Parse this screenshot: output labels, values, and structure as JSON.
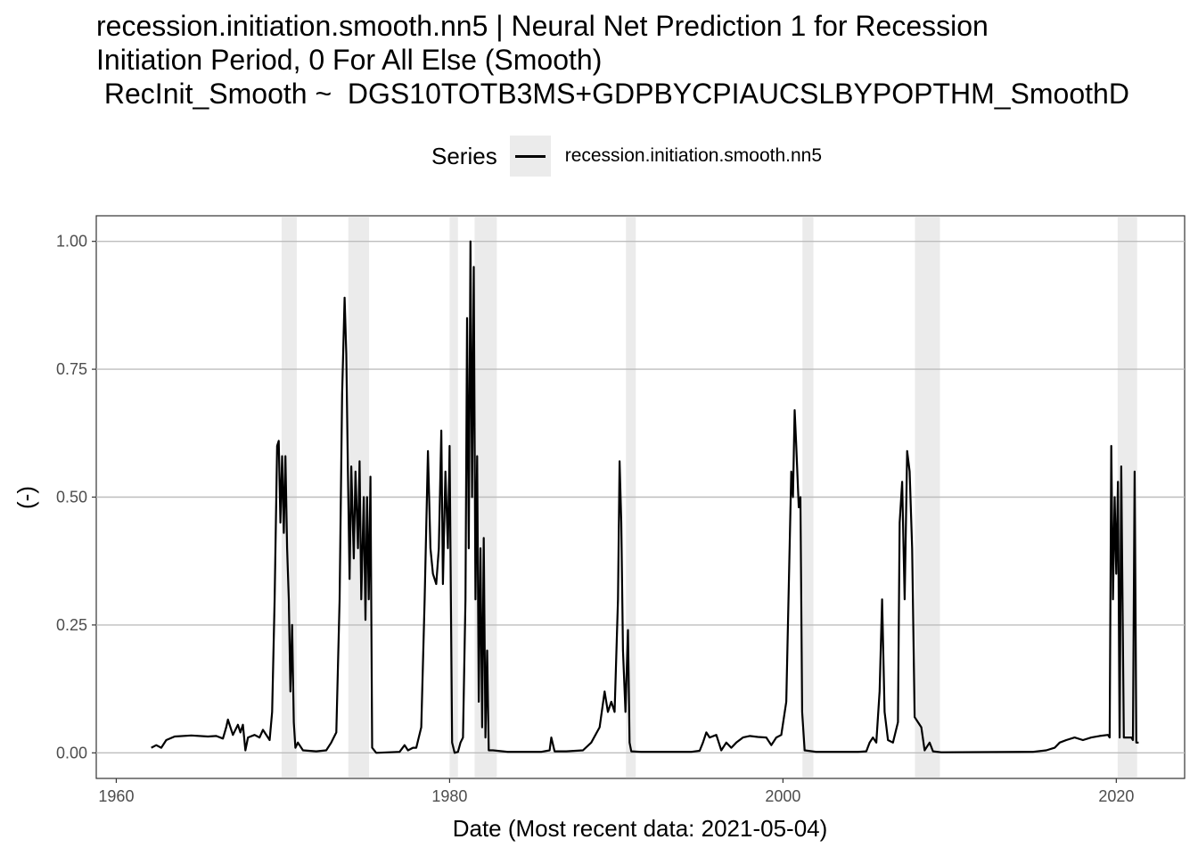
{
  "chart_data": {
    "type": "line",
    "title_lines": [
      "recession.initiation.smooth.nn5 | Neural Net Prediction 1 for Recession",
      "Initiation Period, 0 For All Else (Smooth)",
      " RecInit_Smooth ~  DGS10TOTB3MS+GDPBYCPIAUCSLBYPOPTHM_SmoothD"
    ],
    "legend": {
      "title": "Series",
      "position": "top",
      "entries": [
        "recession.initiation.smooth.nn5"
      ]
    },
    "xlabel": "Date (Most recent data: 2021-05-04)",
    "ylabel": "(-)",
    "xlim": [
      1958.8,
      1967.4
    ],
    "x_range": [
      1958.8,
      2024.1
    ],
    "ylim": [
      -0.05,
      1.05
    ],
    "grid": true,
    "x_ticks": [
      {
        "value": 1960,
        "label": "1960"
      },
      {
        "value": 1980,
        "label": "1980"
      },
      {
        "value": 2000,
        "label": "2000"
      },
      {
        "value": 2020,
        "label": "2020"
      }
    ],
    "y_ticks": [
      {
        "value": 0.0,
        "label": "0.00"
      },
      {
        "value": 0.25,
        "label": "0.25"
      },
      {
        "value": 0.5,
        "label": "0.50"
      },
      {
        "value": 0.75,
        "label": "0.75"
      },
      {
        "value": 1.0,
        "label": "1.00"
      }
    ],
    "recession_shading": [
      [
        1969.92,
        1970.83
      ],
      [
        1973.92,
        1975.17
      ],
      [
        1980.0,
        1980.5
      ],
      [
        1981.5,
        1982.83
      ],
      [
        1990.58,
        1991.17
      ],
      [
        2001.17,
        2001.83
      ],
      [
        2007.92,
        2009.42
      ],
      [
        2020.08,
        2021.25
      ]
    ],
    "series": [
      {
        "name": "recession.initiation.smooth.nn5",
        "color": "#000000",
        "points": [
          [
            1962.1,
            0.01
          ],
          [
            1962.4,
            0.015
          ],
          [
            1962.7,
            0.01
          ],
          [
            1963.0,
            0.025
          ],
          [
            1963.5,
            0.032
          ],
          [
            1964.5,
            0.034
          ],
          [
            1965.5,
            0.032
          ],
          [
            1966.0,
            0.033
          ],
          [
            1966.4,
            0.028
          ],
          [
            1966.6,
            0.05
          ],
          [
            1966.7,
            0.065
          ],
          [
            1966.8,
            0.055
          ],
          [
            1967.0,
            0.035
          ],
          [
            1967.3,
            0.055
          ],
          [
            1967.45,
            0.04
          ],
          [
            1967.6,
            0.055
          ],
          [
            1967.75,
            0.005
          ],
          [
            1967.9,
            0.03
          ],
          [
            1968.3,
            0.035
          ],
          [
            1968.6,
            0.03
          ],
          [
            1968.8,
            0.045
          ],
          [
            1969.2,
            0.025
          ],
          [
            1969.35,
            0.08
          ],
          [
            1969.5,
            0.3
          ],
          [
            1969.65,
            0.6
          ],
          [
            1969.75,
            0.61
          ],
          [
            1969.85,
            0.45
          ],
          [
            1969.95,
            0.58
          ],
          [
            1970.05,
            0.43
          ],
          [
            1970.15,
            0.58
          ],
          [
            1970.25,
            0.4
          ],
          [
            1970.35,
            0.3
          ],
          [
            1970.45,
            0.12
          ],
          [
            1970.55,
            0.25
          ],
          [
            1970.65,
            0.06
          ],
          [
            1970.75,
            0.01
          ],
          [
            1970.9,
            0.02
          ],
          [
            1971.2,
            0.005
          ],
          [
            1972.0,
            0.003
          ],
          [
            1972.6,
            0.005
          ],
          [
            1972.9,
            0.02
          ],
          [
            1973.2,
            0.04
          ],
          [
            1973.4,
            0.3
          ],
          [
            1973.55,
            0.7
          ],
          [
            1973.7,
            0.89
          ],
          [
            1973.8,
            0.78
          ],
          [
            1973.9,
            0.55
          ],
          [
            1974.0,
            0.34
          ],
          [
            1974.1,
            0.56
          ],
          [
            1974.25,
            0.38
          ],
          [
            1974.35,
            0.55
          ],
          [
            1974.5,
            0.4
          ],
          [
            1974.6,
            0.57
          ],
          [
            1974.7,
            0.3
          ],
          [
            1974.85,
            0.5
          ],
          [
            1974.95,
            0.26
          ],
          [
            1975.05,
            0.5
          ],
          [
            1975.15,
            0.3
          ],
          [
            1975.25,
            0.54
          ],
          [
            1975.35,
            0.01
          ],
          [
            1975.6,
            0.0
          ],
          [
            1977.0,
            0.002
          ],
          [
            1977.3,
            0.015
          ],
          [
            1977.5,
            0.005
          ],
          [
            1977.8,
            0.01
          ],
          [
            1978.0,
            0.01
          ],
          [
            1978.3,
            0.05
          ],
          [
            1978.5,
            0.3
          ],
          [
            1978.7,
            0.59
          ],
          [
            1978.85,
            0.4
          ],
          [
            1979.0,
            0.35
          ],
          [
            1979.2,
            0.33
          ],
          [
            1979.35,
            0.4
          ],
          [
            1979.5,
            0.63
          ],
          [
            1979.6,
            0.33
          ],
          [
            1979.75,
            0.55
          ],
          [
            1979.9,
            0.4
          ],
          [
            1980.0,
            0.6
          ],
          [
            1980.15,
            0.02
          ],
          [
            1980.3,
            0.0
          ],
          [
            1980.5,
            0.002
          ],
          [
            1980.65,
            0.02
          ],
          [
            1980.8,
            0.03
          ],
          [
            1980.95,
            0.3
          ],
          [
            1981.05,
            0.85
          ],
          [
            1981.15,
            0.4
          ],
          [
            1981.25,
            1.0
          ],
          [
            1981.35,
            0.5
          ],
          [
            1981.45,
            0.95
          ],
          [
            1981.55,
            0.3
          ],
          [
            1981.65,
            0.58
          ],
          [
            1981.75,
            0.1
          ],
          [
            1981.85,
            0.4
          ],
          [
            1981.95,
            0.05
          ],
          [
            1982.05,
            0.42
          ],
          [
            1982.15,
            0.03
          ],
          [
            1982.25,
            0.2
          ],
          [
            1982.35,
            0.005
          ],
          [
            1982.6,
            0.005
          ],
          [
            1983.5,
            0.002
          ],
          [
            1985.5,
            0.002
          ],
          [
            1986.0,
            0.005
          ],
          [
            1986.1,
            0.03
          ],
          [
            1986.3,
            0.003
          ],
          [
            1987.0,
            0.003
          ],
          [
            1988.0,
            0.005
          ],
          [
            1988.5,
            0.02
          ],
          [
            1989.0,
            0.05
          ],
          [
            1989.3,
            0.12
          ],
          [
            1989.5,
            0.08
          ],
          [
            1989.7,
            0.1
          ],
          [
            1989.9,
            0.08
          ],
          [
            1990.1,
            0.3
          ],
          [
            1990.2,
            0.57
          ],
          [
            1990.3,
            0.45
          ],
          [
            1990.4,
            0.2
          ],
          [
            1990.55,
            0.08
          ],
          [
            1990.7,
            0.24
          ],
          [
            1990.8,
            0.02
          ],
          [
            1990.9,
            0.003
          ],
          [
            1991.5,
            0.002
          ],
          [
            1994.5,
            0.002
          ],
          [
            1995.0,
            0.004
          ],
          [
            1995.2,
            0.02
          ],
          [
            1995.4,
            0.04
          ],
          [
            1995.6,
            0.03
          ],
          [
            1996.0,
            0.035
          ],
          [
            1996.3,
            0.005
          ],
          [
            1996.6,
            0.02
          ],
          [
            1996.9,
            0.01
          ],
          [
            1997.2,
            0.02
          ],
          [
            1997.6,
            0.03
          ],
          [
            1998.0,
            0.033
          ],
          [
            1998.5,
            0.031
          ],
          [
            1999.0,
            0.03
          ],
          [
            1999.3,
            0.015
          ],
          [
            1999.6,
            0.03
          ],
          [
            1999.9,
            0.035
          ],
          [
            2000.2,
            0.1
          ],
          [
            2000.5,
            0.55
          ],
          [
            2000.6,
            0.5
          ],
          [
            2000.7,
            0.67
          ],
          [
            2000.8,
            0.6
          ],
          [
            2000.95,
            0.48
          ],
          [
            2001.05,
            0.5
          ],
          [
            2001.15,
            0.08
          ],
          [
            2001.3,
            0.005
          ],
          [
            2002.0,
            0.002
          ],
          [
            2004.5,
            0.002
          ],
          [
            2005.0,
            0.003
          ],
          [
            2005.2,
            0.02
          ],
          [
            2005.4,
            0.03
          ],
          [
            2005.6,
            0.02
          ],
          [
            2005.8,
            0.12
          ],
          [
            2005.95,
            0.3
          ],
          [
            2006.1,
            0.08
          ],
          [
            2006.3,
            0.025
          ],
          [
            2006.6,
            0.02
          ],
          [
            2006.9,
            0.06
          ],
          [
            2007.0,
            0.45
          ],
          [
            2007.15,
            0.53
          ],
          [
            2007.3,
            0.3
          ],
          [
            2007.45,
            0.59
          ],
          [
            2007.6,
            0.55
          ],
          [
            2007.75,
            0.4
          ],
          [
            2007.9,
            0.07
          ],
          [
            2008.1,
            0.06
          ],
          [
            2008.3,
            0.05
          ],
          [
            2008.5,
            0.005
          ],
          [
            2008.8,
            0.02
          ],
          [
            2009.0,
            0.003
          ],
          [
            2009.5,
            0.001
          ],
          [
            2015.0,
            0.002
          ],
          [
            2015.8,
            0.005
          ],
          [
            2016.3,
            0.01
          ],
          [
            2016.6,
            0.02
          ],
          [
            2017.0,
            0.025
          ],
          [
            2017.5,
            0.03
          ],
          [
            2018.0,
            0.025
          ],
          [
            2018.5,
            0.03
          ],
          [
            2019.0,
            0.033
          ],
          [
            2019.5,
            0.035
          ],
          [
            2019.6,
            0.03
          ],
          [
            2019.7,
            0.6
          ],
          [
            2019.8,
            0.3
          ],
          [
            2019.9,
            0.5
          ],
          [
            2020.0,
            0.35
          ],
          [
            2020.1,
            0.53
          ],
          [
            2020.2,
            0.03
          ],
          [
            2020.3,
            0.56
          ],
          [
            2020.45,
            0.03
          ],
          [
            2020.7,
            0.03
          ],
          [
            2020.9,
            0.03
          ],
          [
            2021.0,
            0.025
          ],
          [
            2021.1,
            0.55
          ],
          [
            2021.2,
            0.02
          ],
          [
            2021.34,
            0.02
          ]
        ]
      }
    ]
  }
}
